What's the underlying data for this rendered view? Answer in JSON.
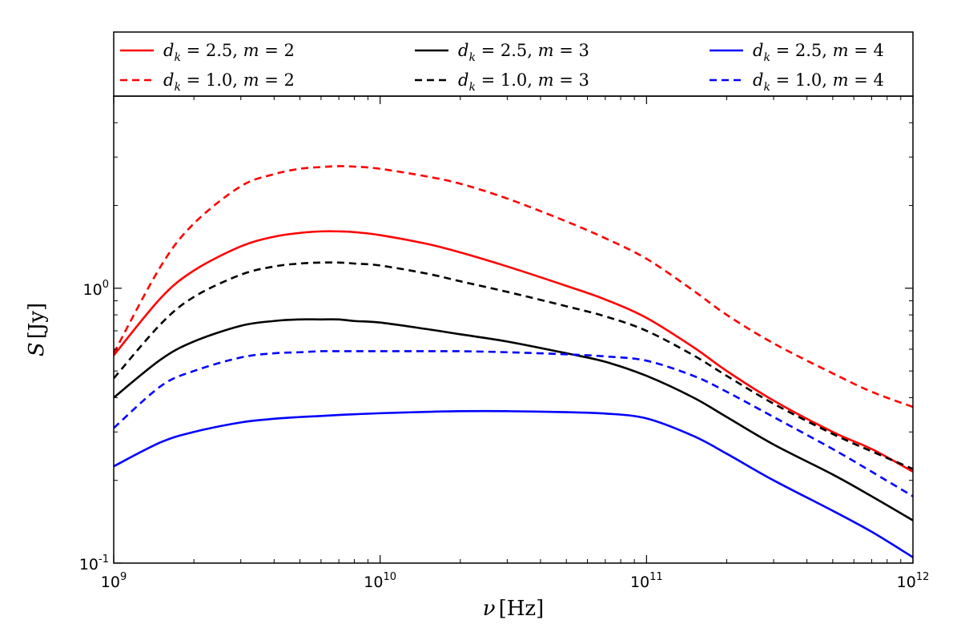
{
  "chart_data": {
    "type": "line",
    "title": "",
    "xlabel": "ν [Hz]",
    "ylabel": "S [Jy]",
    "xscale": "log",
    "yscale": "log",
    "xlim": [
      1000000000.0,
      1000000000000.0
    ],
    "ylim": [
      0.1,
      5.0
    ],
    "grid": false,
    "legend_position": "top, above plot, 3 columns",
    "x_tick_labels": [
      {
        "base": "10",
        "exp": "9"
      },
      {
        "base": "10",
        "exp": "10"
      },
      {
        "base": "10",
        "exp": "11"
      },
      {
        "base": "10",
        "exp": "12"
      }
    ],
    "y_tick_labels": [
      {
        "base": "10",
        "exp": "-1"
      },
      {
        "base": "10",
        "exp": "0"
      }
    ],
    "x": [
      1000000000.0,
      1500000000.0,
      2000000000.0,
      3000000000.0,
      4000000000.0,
      5000000000.0,
      6000000000.0,
      7000000000.0,
      8000000000.0,
      10000000000.0,
      15000000000.0,
      20000000000.0,
      30000000000.0,
      50000000000.0,
      70000000000.0,
      100000000000.0,
      150000000000.0,
      200000000000.0,
      300000000000.0,
      500000000000.0,
      700000000000.0,
      1000000000000.0
    ],
    "series": [
      {
        "name": "d_k = 2.5, m = 2",
        "label_d": "2.5",
        "label_m": "2",
        "color": "#ff0000",
        "dash": "solid",
        "values": [
          0.57,
          0.92,
          1.16,
          1.42,
          1.54,
          1.59,
          1.61,
          1.61,
          1.6,
          1.56,
          1.45,
          1.35,
          1.2,
          1.02,
          0.91,
          0.78,
          0.61,
          0.5,
          0.39,
          0.3,
          0.26,
          0.215
        ]
      },
      {
        "name": "d_k = 1.0, m = 2",
        "label_d": "1.0",
        "label_m": "2",
        "color": "#ff0000",
        "dash": "dashed",
        "values": [
          0.58,
          1.2,
          1.72,
          2.35,
          2.6,
          2.72,
          2.76,
          2.78,
          2.77,
          2.72,
          2.55,
          2.4,
          2.12,
          1.75,
          1.52,
          1.28,
          0.98,
          0.8,
          0.63,
          0.49,
          0.42,
          0.37
        ]
      },
      {
        "name": "d_k = 2.5, m = 3",
        "label_d": "2.5",
        "label_m": "3",
        "color": "#000000",
        "dash": "solid",
        "values": [
          0.4,
          0.55,
          0.64,
          0.73,
          0.76,
          0.77,
          0.77,
          0.77,
          0.76,
          0.75,
          0.71,
          0.68,
          0.64,
          0.58,
          0.54,
          0.48,
          0.4,
          0.34,
          0.27,
          0.21,
          0.175,
          0.143
        ]
      },
      {
        "name": "d_k = 1.0, m = 3",
        "label_d": "1.0",
        "label_m": "3",
        "color": "#000000",
        "dash": "dashed",
        "values": [
          0.47,
          0.74,
          0.93,
          1.12,
          1.2,
          1.23,
          1.24,
          1.24,
          1.23,
          1.21,
          1.13,
          1.06,
          0.97,
          0.86,
          0.79,
          0.7,
          0.57,
          0.48,
          0.38,
          0.295,
          0.255,
          0.22
        ]
      },
      {
        "name": "d_k = 2.5, m = 4",
        "label_d": "2.5",
        "label_m": "4",
        "color": "#0000ff",
        "dash": "solid",
        "values": [
          0.225,
          0.275,
          0.3,
          0.325,
          0.335,
          0.34,
          0.343,
          0.346,
          0.348,
          0.351,
          0.355,
          0.357,
          0.357,
          0.354,
          0.35,
          0.336,
          0.29,
          0.25,
          0.2,
          0.155,
          0.13,
          0.105
        ]
      },
      {
        "name": "d_k = 1.0, m = 4",
        "label_d": "1.0",
        "label_m": "4",
        "color": "#0000ff",
        "dash": "dashed",
        "values": [
          0.31,
          0.44,
          0.5,
          0.56,
          0.58,
          0.585,
          0.59,
          0.59,
          0.59,
          0.59,
          0.59,
          0.59,
          0.585,
          0.575,
          0.565,
          0.545,
          0.48,
          0.42,
          0.34,
          0.26,
          0.215,
          0.175
        ]
      }
    ]
  }
}
